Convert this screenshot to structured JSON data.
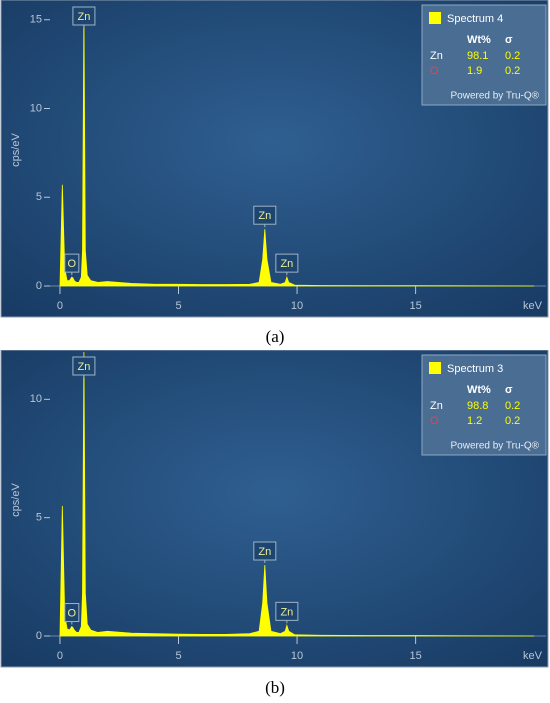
{
  "chart_data": [
    {
      "type": "area",
      "caption": "(a)",
      "x_label": "keV",
      "y_label": "cps/eV",
      "xlim": [
        -0.8,
        20.5
      ],
      "ylim": [
        0,
        16
      ],
      "xticks": [
        0,
        5,
        10,
        15
      ],
      "yticks": [
        0,
        5,
        10,
        15
      ],
      "series": [
        {
          "name": "Spectrum 4",
          "color": "#ffff00",
          "x": [
            0,
            0.1,
            0.2,
            0.3,
            0.4,
            0.5,
            0.55,
            0.6,
            0.7,
            0.8,
            0.9,
            0.95,
            1.01,
            1.07,
            1.15,
            1.3,
            1.6,
            2,
            3,
            4,
            5,
            6,
            7,
            8,
            8.4,
            8.55,
            8.64,
            8.73,
            8.9,
            9.3,
            9.5,
            9.57,
            9.65,
            9.9,
            11,
            13,
            15,
            17,
            20
          ],
          "values": [
            0,
            5.7,
            1.0,
            0.3,
            0.3,
            0.5,
            0.45,
            0.3,
            0.2,
            0.2,
            0.5,
            2,
            15.6,
            2,
            0.6,
            0.3,
            0.2,
            0.25,
            0.15,
            0.1,
            0.1,
            0.08,
            0.08,
            0.1,
            0.2,
            1.5,
            3.2,
            1.5,
            0.2,
            0.1,
            0.2,
            0.5,
            0.2,
            0.05,
            0.03,
            0.02,
            0.02,
            0.01,
            0
          ]
        }
      ],
      "annotations": [
        {
          "text": "O",
          "x": 0.5
        },
        {
          "text": "Zn",
          "x": 1.01
        },
        {
          "text": "Zn",
          "x": 8.64
        },
        {
          "text": "Zn",
          "x": 9.57
        }
      ],
      "legend": {
        "columns": [
          "Wt%",
          "σ"
        ],
        "rows": [
          {
            "element": "Zn",
            "color": "#ffffff",
            "values": [
              98.1,
              0.2
            ]
          },
          {
            "element": "O",
            "color": "#ff3b3b",
            "values": [
              1.9,
              0.2
            ]
          }
        ],
        "footer": "Powered by Tru-Q®"
      }
    },
    {
      "type": "area",
      "caption": "(b)",
      "x_label": "keV",
      "y_label": "cps/eV",
      "xlim": [
        -0.8,
        20.5
      ],
      "ylim": [
        0,
        12
      ],
      "xticks": [
        0,
        5,
        10,
        15
      ],
      "yticks": [
        0,
        5,
        10
      ],
      "series": [
        {
          "name": "Spectrum 3",
          "color": "#ffff00",
          "x": [
            0,
            0.1,
            0.2,
            0.3,
            0.4,
            0.5,
            0.55,
            0.6,
            0.7,
            0.8,
            0.9,
            0.95,
            1.01,
            1.07,
            1.15,
            1.3,
            1.6,
            2,
            3,
            4,
            5,
            6,
            7,
            8,
            8.4,
            8.55,
            8.64,
            8.73,
            8.9,
            9.3,
            9.5,
            9.57,
            9.65,
            9.9,
            11,
            13,
            15,
            17,
            20
          ],
          "values": [
            0,
            5.5,
            0.9,
            0.3,
            0.25,
            0.4,
            0.35,
            0.25,
            0.15,
            0.15,
            0.4,
            1.8,
            12,
            1.8,
            0.5,
            0.25,
            0.15,
            0.2,
            0.12,
            0.1,
            0.08,
            0.07,
            0.07,
            0.1,
            0.2,
            1.4,
            3.0,
            1.4,
            0.2,
            0.1,
            0.2,
            0.45,
            0.2,
            0.05,
            0.03,
            0.02,
            0.02,
            0.01,
            0
          ]
        }
      ],
      "annotations": [
        {
          "text": "O",
          "x": 0.5
        },
        {
          "text": "Zn",
          "x": 1.01
        },
        {
          "text": "Zn",
          "x": 8.64
        },
        {
          "text": "Zn",
          "x": 9.57
        }
      ],
      "legend": {
        "columns": [
          "Wt%",
          "σ"
        ],
        "rows": [
          {
            "element": "Zn",
            "color": "#ffffff",
            "values": [
              98.8,
              0.2
            ]
          },
          {
            "element": "O",
            "color": "#ff3b3b",
            "values": [
              1.2,
              0.2
            ]
          }
        ],
        "footer": "Powered by Tru-Q®"
      }
    }
  ]
}
